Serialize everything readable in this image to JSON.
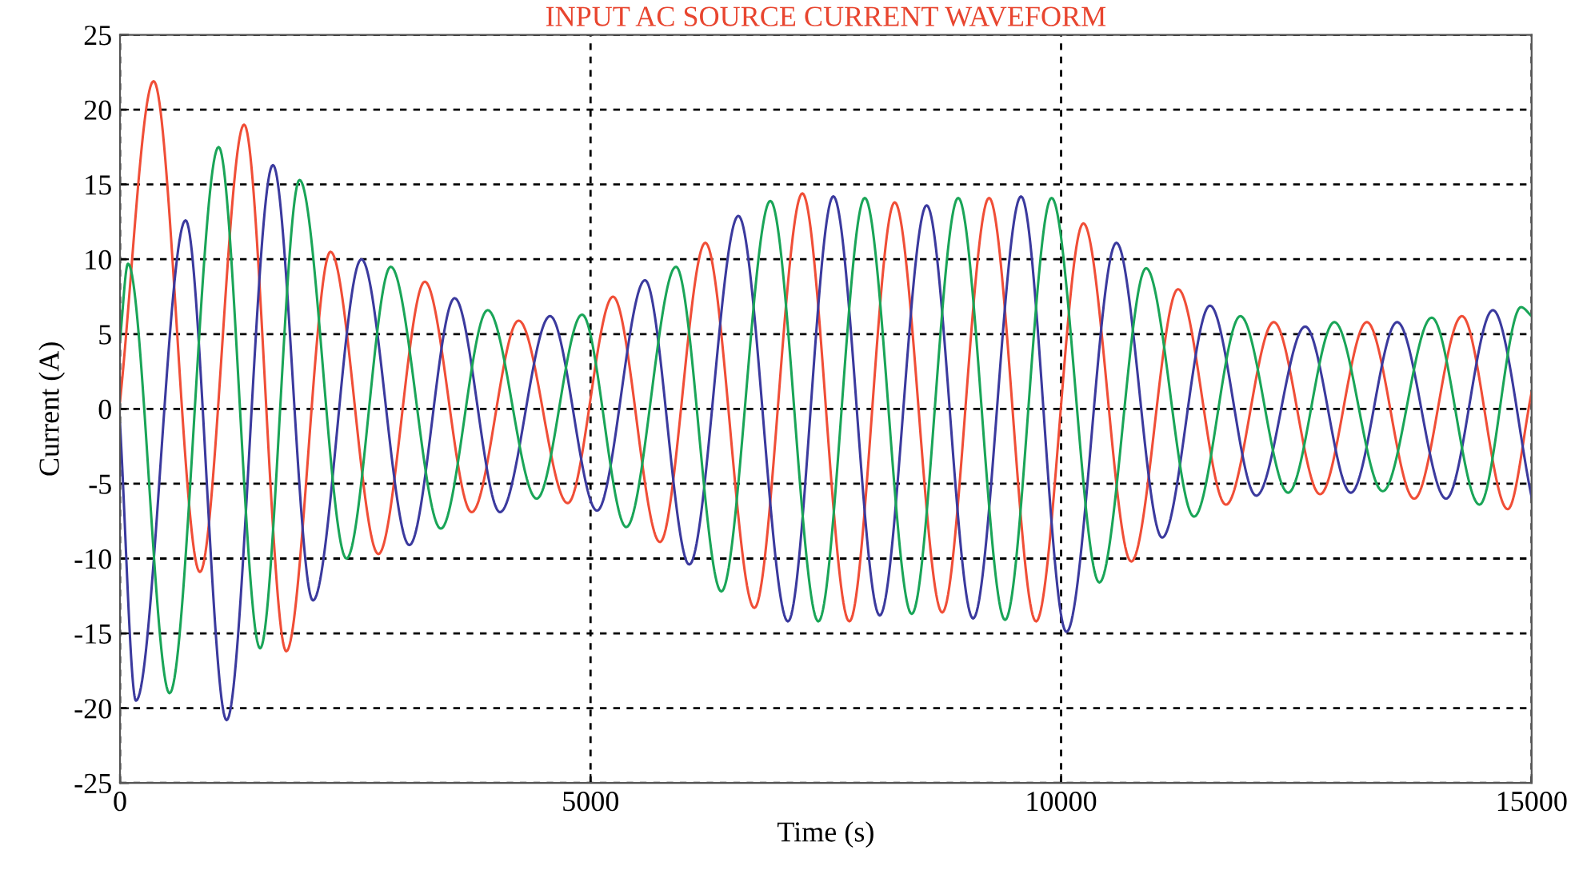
{
  "chart_data": {
    "type": "line",
    "title": "INPUT AC SOURCE CURRENT WAVEFORM",
    "xlabel": "Time (s)",
    "ylabel": "Current (A)",
    "xlim": [
      0,
      15000
    ],
    "xticks": [
      0,
      5000,
      10000,
      15000
    ],
    "ylim": [
      -25,
      25
    ],
    "yticks": [
      -25,
      -20,
      -15,
      -10,
      -5,
      0,
      5,
      10,
      15,
      20,
      25
    ],
    "grid": true,
    "legend": false,
    "marker": "none",
    "line_style": "solid",
    "series": [
      {
        "color": "#f04e37",
        "x": [
          0,
          357,
          849,
          1319,
          1767,
          2237,
          2746,
          3239,
          3737,
          4236,
          4757,
          5239,
          5738,
          6220,
          6741,
          7251,
          7750,
          8232,
          8737,
          9235,
          9734,
          10237,
          10746,
          11243,
          11752,
          12260,
          12752,
          13249,
          13752,
          14260,
          14746,
          15000
        ],
        "values": [
          0.5,
          21.9,
          -10.9,
          19.0,
          -16.2,
          10.5,
          -9.7,
          8.5,
          -6.9,
          5.9,
          -6.3,
          7.5,
          -8.9,
          11.1,
          -13.3,
          14.4,
          -14.2,
          13.8,
          -13.6,
          14.1,
          -14.2,
          12.4,
          -10.2,
          8.0,
          -6.4,
          5.8,
          -5.7,
          5.8,
          -6.0,
          6.2,
          -6.7,
          1.1
        ]
      },
      {
        "color": "#3b3a9e",
        "x": [
          0,
          170,
          697,
          1133,
          1625,
          2050,
          2565,
          3075,
          3556,
          4038,
          4570,
          5069,
          5579,
          6049,
          6571,
          7098,
          7580,
          8073,
          8572,
          9065,
          9575,
          10057,
          10588,
          11074,
          11582,
          12074,
          12594,
          13079,
          13571,
          14091,
          14588,
          15000
        ],
        "values": [
          -1.0,
          -19.5,
          12.6,
          -20.8,
          16.3,
          -12.8,
          10.0,
          -9.1,
          7.4,
          -6.9,
          6.2,
          -6.8,
          8.6,
          -10.4,
          12.9,
          -14.2,
          14.2,
          -13.8,
          13.6,
          -14.0,
          14.2,
          -14.9,
          11.1,
          -8.6,
          6.9,
          -5.8,
          5.5,
          -5.6,
          5.8,
          -6.0,
          6.6,
          -5.9
        ]
      },
      {
        "color": "#1aa558",
        "x": [
          0,
          85,
          527,
          1048,
          1489,
          1908,
          2407,
          2877,
          3409,
          3907,
          4428,
          4910,
          5380,
          5908,
          6390,
          6911,
          7421,
          7914,
          8413,
          8907,
          9405,
          9899,
          10407,
          10904,
          11413,
          11905,
          12413,
          12904,
          13418,
          13938,
          14446,
          14887,
          15000
        ],
        "values": [
          4.6,
          9.7,
          -19.0,
          17.5,
          -16.0,
          15.3,
          -10.0,
          9.5,
          -8.0,
          6.6,
          -6.0,
          6.3,
          -7.9,
          9.5,
          -12.2,
          13.9,
          -14.2,
          14.1,
          -13.7,
          14.1,
          -14.1,
          14.1,
          -11.6,
          9.4,
          -7.2,
          6.2,
          -5.6,
          5.8,
          -5.5,
          6.1,
          -6.4,
          6.8,
          6.2
        ]
      }
    ]
  }
}
